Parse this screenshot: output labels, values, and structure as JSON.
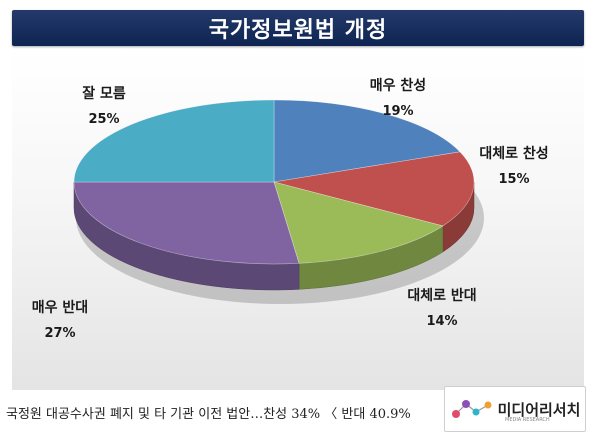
{
  "header": {
    "title": "국가정보원법 개정"
  },
  "chart_data": {
    "type": "pie",
    "title": "국가정보원법 개정",
    "categories": [
      "매우 찬성",
      "대체로 찬성",
      "대체로 반대",
      "매우 반대",
      "잘 모름"
    ],
    "values": [
      19,
      15,
      14,
      27,
      25
    ],
    "value_labels": [
      "19%",
      "15%",
      "14%",
      "27%",
      "25%"
    ],
    "colors": [
      "#4f81bd",
      "#c0504d",
      "#9bbb59",
      "#8064a2",
      "#4bacc6"
    ],
    "start_angle_deg": -90,
    "direction": "clockwise",
    "style": "3d"
  },
  "logo": {
    "text": "미디어리서치",
    "subtitle": "MEDIA RESEARCH"
  },
  "caption": "국정원 대공수사권 폐지 및 타 기관 이전 법안…찬성 34% 〈 반대 40.9%"
}
